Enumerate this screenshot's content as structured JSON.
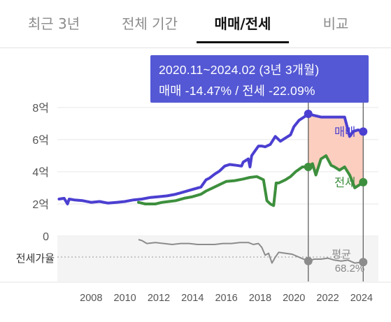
{
  "tabs": [
    {
      "label": "최근 3년",
      "active": false
    },
    {
      "label": "전체 기간",
      "active": false
    },
    {
      "label": "매매/전세",
      "active": true
    },
    {
      "label": "비교",
      "active": false
    }
  ],
  "tooltip": {
    "period": "2020.11~2024.02 (3년 3개월)",
    "summary": "매매 -14.47%  /  전세 -22.09%"
  },
  "colors": {
    "sale": "#4b3fd1",
    "jeonse": "#3d8f3d",
    "highlight": "#fbc9b8",
    "ratio": "#8c8c8c",
    "tooltip_bg": "#5458d4"
  },
  "chart_data": [
    {
      "type": "line",
      "title": "",
      "ylabel": "",
      "y_ticks": [
        "8억",
        "6억",
        "4억",
        "2억",
        "0"
      ],
      "ylim": [
        0,
        8.6
      ],
      "x_ticks": [
        "2008",
        "2010",
        "2012",
        "2014",
        "2016",
        "2018",
        "2020",
        "2022",
        "2024"
      ],
      "xlim": [
        2006.0,
        2025.0
      ],
      "highlight_range": [
        2020.85,
        2024.1
      ],
      "series": [
        {
          "name": "매매",
          "color": "#4b3fd1",
          "points": [
            [
              2006.1,
              2.3
            ],
            [
              2006.4,
              2.35
            ],
            [
              2006.6,
              2.0
            ],
            [
              2006.7,
              2.3
            ],
            [
              2007.0,
              2.25
            ],
            [
              2007.5,
              2.2
            ],
            [
              2008.0,
              2.1
            ],
            [
              2008.5,
              2.15
            ],
            [
              2009.0,
              2.05
            ],
            [
              2009.5,
              2.1
            ],
            [
              2010.0,
              2.15
            ],
            [
              2010.5,
              2.25
            ],
            [
              2011.0,
              2.3
            ],
            [
              2011.5,
              2.4
            ],
            [
              2012.0,
              2.45
            ],
            [
              2012.5,
              2.5
            ],
            [
              2013.0,
              2.6
            ],
            [
              2013.5,
              2.75
            ],
            [
              2014.0,
              2.9
            ],
            [
              2014.5,
              3.05
            ],
            [
              2014.8,
              3.5
            ],
            [
              2015.0,
              3.6
            ],
            [
              2015.3,
              3.85
            ],
            [
              2015.6,
              4.05
            ],
            [
              2015.9,
              4.35
            ],
            [
              2016.2,
              4.45
            ],
            [
              2016.6,
              4.4
            ],
            [
              2016.9,
              4.35
            ],
            [
              2017.0,
              4.6
            ],
            [
              2017.3,
              4.8
            ],
            [
              2017.4,
              4.3
            ],
            [
              2017.5,
              5.0
            ],
            [
              2017.7,
              5.3
            ],
            [
              2017.9,
              5.6
            ],
            [
              2018.1,
              5.6
            ],
            [
              2018.3,
              5.55
            ],
            [
              2018.6,
              5.7
            ],
            [
              2018.9,
              6.2
            ],
            [
              2019.2,
              5.9
            ],
            [
              2019.5,
              6.1
            ],
            [
              2019.8,
              6.3
            ],
            [
              2020.0,
              6.8
            ],
            [
              2020.3,
              7.2
            ],
            [
              2020.6,
              7.4
            ],
            [
              2020.85,
              7.6
            ],
            [
              2021.2,
              7.5
            ],
            [
              2021.6,
              7.4
            ],
            [
              2022.0,
              7.4
            ],
            [
              2022.5,
              7.4
            ],
            [
              2023.0,
              7.4
            ],
            [
              2023.3,
              6.2
            ],
            [
              2023.5,
              6.5
            ],
            [
              2023.8,
              6.6
            ],
            [
              2024.1,
              6.5
            ]
          ]
        },
        {
          "name": "전세",
          "color": "#3d8f3d",
          "points": [
            [
              2010.8,
              2.1
            ],
            [
              2011.2,
              2.0
            ],
            [
              2011.8,
              2.0
            ],
            [
              2012.2,
              2.1
            ],
            [
              2012.6,
              2.15
            ],
            [
              2013.0,
              2.2
            ],
            [
              2013.5,
              2.35
            ],
            [
              2014.0,
              2.45
            ],
            [
              2014.5,
              2.6
            ],
            [
              2014.8,
              2.8
            ],
            [
              2015.2,
              3.0
            ],
            [
              2015.6,
              3.2
            ],
            [
              2016.0,
              3.4
            ],
            [
              2016.5,
              3.45
            ],
            [
              2017.0,
              3.55
            ],
            [
              2017.4,
              3.65
            ],
            [
              2017.8,
              3.7
            ],
            [
              2018.0,
              3.6
            ],
            [
              2018.2,
              3.5
            ],
            [
              2018.4,
              2.2
            ],
            [
              2018.6,
              2.0
            ],
            [
              2018.8,
              1.9
            ],
            [
              2018.95,
              3.3
            ],
            [
              2019.1,
              3.3
            ],
            [
              2019.5,
              3.5
            ],
            [
              2019.8,
              3.7
            ],
            [
              2020.1,
              4.0
            ],
            [
              2020.5,
              4.3
            ],
            [
              2020.85,
              4.3
            ],
            [
              2021.1,
              4.5
            ],
            [
              2021.3,
              3.8
            ],
            [
              2021.6,
              4.8
            ],
            [
              2021.9,
              5.0
            ],
            [
              2022.2,
              4.4
            ],
            [
              2022.4,
              4.3
            ],
            [
              2022.7,
              4.1
            ],
            [
              2023.0,
              4.3
            ],
            [
              2023.3,
              3.8
            ],
            [
              2023.6,
              3.0
            ],
            [
              2023.9,
              3.2
            ],
            [
              2024.1,
              3.35
            ]
          ]
        }
      ],
      "series_labels": [
        "매매",
        "전세"
      ]
    },
    {
      "type": "line",
      "title": "",
      "ylabel": "전세가율",
      "average_label": "평균",
      "average_value": "68.2%",
      "xlim": [
        2006.0,
        2025.0
      ],
      "ylim": [
        40,
        80
      ],
      "series": [
        {
          "name": "전세가율",
          "color": "#8c8c8c",
          "points": [
            [
              2010.8,
              80
            ],
            [
              2011.0,
              79
            ],
            [
              2011.3,
              76
            ],
            [
              2011.8,
              77
            ],
            [
              2012.3,
              76
            ],
            [
              2012.8,
              75
            ],
            [
              2013.3,
              76
            ],
            [
              2013.8,
              76
            ],
            [
              2014.3,
              75
            ],
            [
              2014.8,
              75
            ],
            [
              2015.3,
              75
            ],
            [
              2015.8,
              76
            ],
            [
              2016.3,
              76
            ],
            [
              2016.8,
              77
            ],
            [
              2017.3,
              77
            ],
            [
              2017.6,
              75
            ],
            [
              2017.9,
              76
            ],
            [
              2018.1,
              72
            ],
            [
              2018.3,
              64
            ],
            [
              2018.5,
              66
            ],
            [
              2018.7,
              56
            ],
            [
              2018.9,
              62
            ],
            [
              2019.1,
              67
            ],
            [
              2019.5,
              66
            ],
            [
              2019.9,
              65
            ],
            [
              2020.3,
              62
            ],
            [
              2020.85,
              58
            ],
            [
              2021.2,
              60
            ],
            [
              2021.6,
              60
            ],
            [
              2022.0,
              61
            ],
            [
              2022.4,
              59
            ],
            [
              2022.8,
              58
            ],
            [
              2023.2,
              59
            ],
            [
              2023.6,
              56
            ],
            [
              2024.1,
              57
            ]
          ]
        }
      ]
    }
  ]
}
